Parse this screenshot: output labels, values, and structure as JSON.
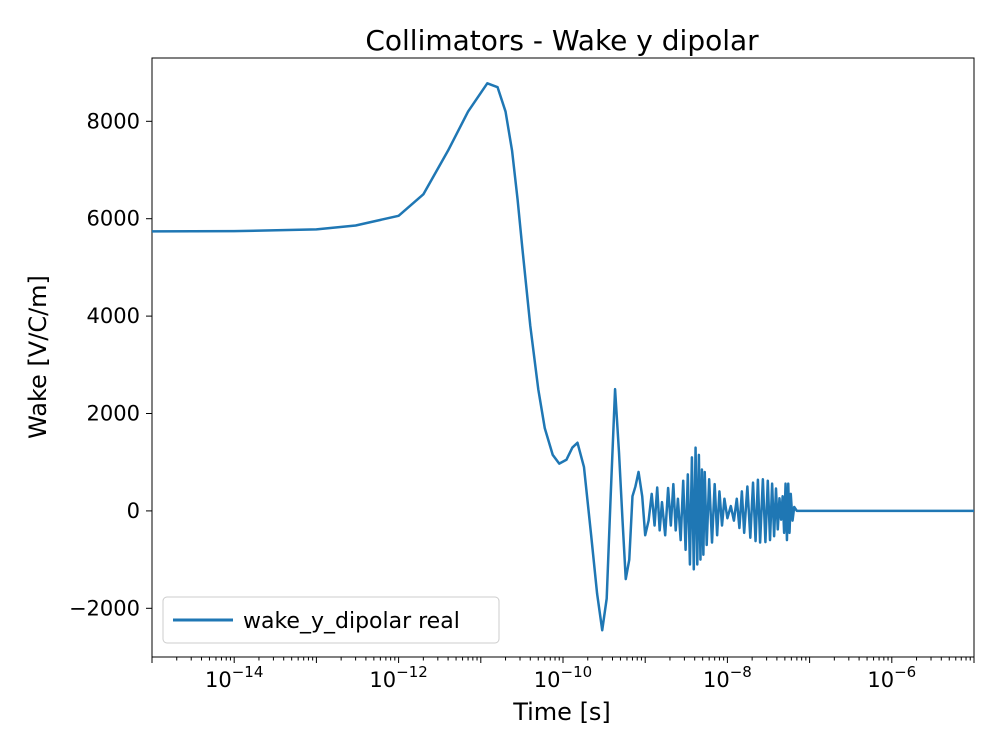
{
  "chart_data": {
    "type": "line",
    "title": "Collimators - Wake y dipolar",
    "xlabel": "Time [s]",
    "ylabel": "Wake [V/C/m]",
    "xscale": "log",
    "xlim": [
      1e-15,
      1e-05
    ],
    "ylim": [
      -3000,
      9300
    ],
    "grid": false,
    "legend_position": "lower-left",
    "x_ticks": [
      {
        "base": "10",
        "exp": "−14",
        "value": 1e-14
      },
      {
        "base": "10",
        "exp": "−12",
        "value": 1e-12
      },
      {
        "base": "10",
        "exp": "−10",
        "value": 1e-10
      },
      {
        "base": "10",
        "exp": "−8",
        "value": 1e-08
      },
      {
        "base": "10",
        "exp": "−6",
        "value": 1e-06
      }
    ],
    "y_ticks": [
      {
        "label": "−2000",
        "value": -2000
      },
      {
        "label": "0",
        "value": 0
      },
      {
        "label": "2000",
        "value": 2000
      },
      {
        "label": "4000",
        "value": 4000
      },
      {
        "label": "6000",
        "value": 6000
      },
      {
        "label": "8000",
        "value": 8000
      }
    ],
    "series": [
      {
        "name": "wake_y_dipolar real",
        "color": "#1f77b4",
        "x": [
          1e-15,
          1e-14,
          1e-13,
          3e-13,
          1e-12,
          2e-12,
          4e-12,
          7e-12,
          1.2e-11,
          1.6e-11,
          2e-11,
          2.4e-11,
          2.8e-11,
          3.2e-11,
          4e-11,
          5e-11,
          6e-11,
          7.5e-11,
          9e-11,
          1.1e-10,
          1.3e-10,
          1.5e-10,
          1.8e-10,
          2.2e-10,
          2.6e-10,
          3e-10,
          3.4e-10,
          3.8e-10,
          4.3e-10,
          4.8e-10,
          5.3e-10,
          5.8e-10,
          6.4e-10,
          7e-10,
          7.6e-10,
          8.3e-10,
          9.2e-10,
          1e-09,
          1.1e-09,
          1.2e-09,
          1.3e-09,
          1.4e-09,
          1.5e-09,
          1.6e-09,
          1.75e-09,
          1.9e-09,
          2.05e-09,
          2.2e-09,
          2.35e-09,
          2.5e-09,
          2.7e-09,
          2.9e-09,
          3.1e-09,
          3.3e-09,
          3.5e-09,
          3.7e-09,
          3.9e-09,
          4.1e-09,
          4.3e-09,
          4.5e-09,
          4.7e-09,
          4.9e-09,
          5.1e-09,
          5.3e-09,
          5.6e-09,
          6e-09,
          6.5e-09,
          7e-09,
          7.5e-09,
          8e-09,
          8.6e-09,
          9.2e-09,
          1e-08,
          1.1e-08,
          1.2e-08,
          1.3e-08,
          1.4e-08,
          1.5e-08,
          1.6e-08,
          1.75e-08,
          1.9e-08,
          2.05e-08,
          2.2e-08,
          2.35e-08,
          2.5e-08,
          2.7e-08,
          2.9e-08,
          3.1e-08,
          3.3e-08,
          3.5e-08,
          3.7e-08,
          3.9e-08,
          4.1e-08,
          4.3e-08,
          4.5e-08,
          4.7e-08,
          4.9e-08,
          5.1e-08,
          5.3e-08,
          5.5e-08,
          5.7e-08,
          5.9e-08,
          6.2e-08,
          6.5e-08,
          7e-08,
          8e-08,
          1e-07,
          1e-06,
          1e-05
        ],
        "y": [
          5740,
          5745,
          5780,
          5860,
          6060,
          6500,
          7400,
          8200,
          8780,
          8700,
          8200,
          7400,
          6400,
          5400,
          3800,
          2500,
          1700,
          1150,
          970,
          1050,
          1300,
          1400,
          900,
          -500,
          -1700,
          -2450,
          -1800,
          300,
          2500,
          1200,
          -200,
          -1400,
          -1000,
          300,
          500,
          800,
          300,
          -500,
          -200,
          350,
          -300,
          480,
          -400,
          180,
          -500,
          470,
          -300,
          550,
          -400,
          250,
          -600,
          620,
          -800,
          750,
          -1100,
          1100,
          -1200,
          1300,
          -1100,
          1150,
          -1000,
          850,
          -900,
          800,
          -700,
          650,
          -650,
          550,
          -500,
          400,
          -300,
          250,
          -150,
          100,
          -200,
          250,
          -350,
          400,
          -450,
          500,
          -550,
          580,
          -620,
          640,
          -650,
          650,
          -640,
          620,
          -600,
          560,
          -520,
          460,
          -380,
          260,
          -180,
          300,
          -450,
          560,
          -600,
          560,
          -450,
          350,
          -200,
          80,
          0,
          0,
          0,
          0,
          0
        ]
      }
    ]
  }
}
